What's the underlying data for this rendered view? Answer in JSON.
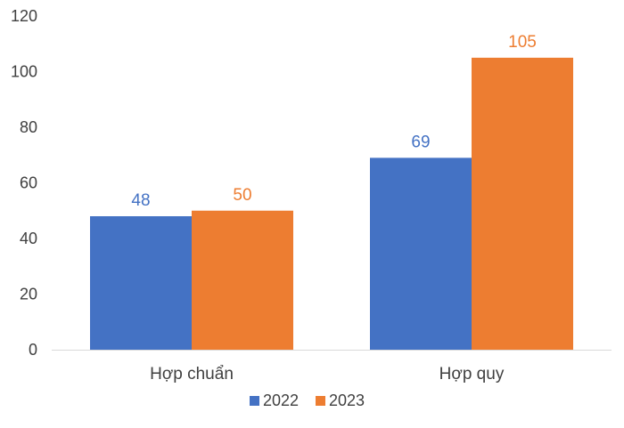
{
  "chart_data": {
    "type": "bar",
    "categories": [
      "Hợp chuẩn",
      "Hợp quy"
    ],
    "series": [
      {
        "name": "2022",
        "values": [
          48,
          69
        ],
        "color": "#4472C4"
      },
      {
        "name": "2023",
        "values": [
          50,
          105
        ],
        "color": "#ED7D31"
      }
    ],
    "title": "",
    "xlabel": "",
    "ylabel": "",
    "ylim": [
      0,
      120
    ],
    "yticks": [
      0,
      20,
      40,
      60,
      80,
      100,
      120
    ],
    "grid": false,
    "legend": "bottom",
    "data_labels": true
  }
}
